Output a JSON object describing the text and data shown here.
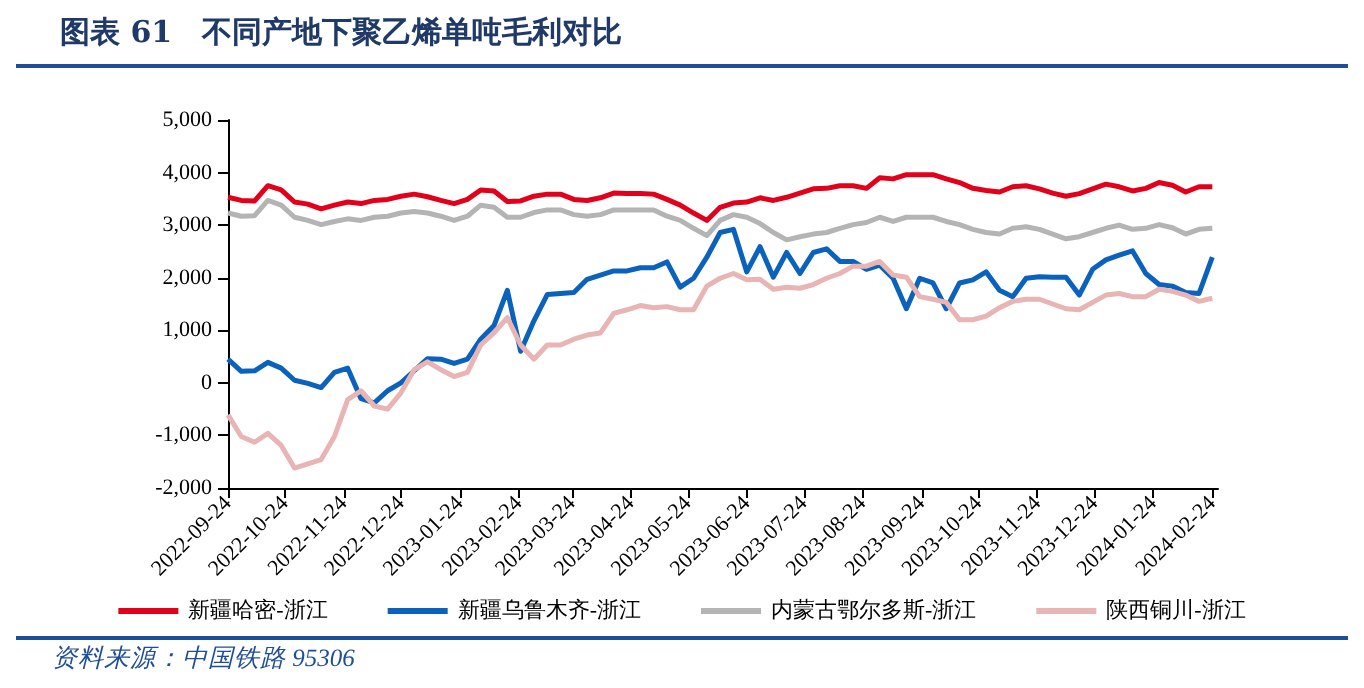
{
  "chart_data": {
    "type": "line",
    "title": "图表 61　不同产地下聚乙烯单吨毛利对比",
    "annotations": [
      "资料来源：中国铁路 95306"
    ],
    "x": [
      "2022-09-24",
      "2022-10-01",
      "2022-10-08",
      "2022-10-15",
      "2022-10-22",
      "2022-10-29",
      "2022-11-05",
      "2022-11-12",
      "2022-11-19",
      "2022-11-26",
      "2022-12-03",
      "2022-12-10",
      "2022-12-17",
      "2022-12-24",
      "2022-12-31",
      "2023-01-07",
      "2023-01-14",
      "2023-01-21",
      "2023-01-28",
      "2023-02-04",
      "2023-02-11",
      "2023-02-18",
      "2023-02-25",
      "2023-03-04",
      "2023-03-11",
      "2023-03-18",
      "2023-03-25",
      "2023-04-01",
      "2023-04-08",
      "2023-04-15",
      "2023-04-22",
      "2023-04-29",
      "2023-05-06",
      "2023-05-13",
      "2023-05-20",
      "2023-05-27",
      "2023-06-03",
      "2023-06-10",
      "2023-06-17",
      "2023-06-24",
      "2023-07-01",
      "2023-07-08",
      "2023-07-15",
      "2023-07-22",
      "2023-07-29",
      "2023-08-05",
      "2023-08-12",
      "2023-08-19",
      "2023-08-26",
      "2023-09-02",
      "2023-09-09",
      "2023-09-16",
      "2023-09-23",
      "2023-09-30",
      "2023-10-07",
      "2023-10-14",
      "2023-10-21",
      "2023-10-28",
      "2023-11-04",
      "2023-11-11",
      "2023-11-18",
      "2023-11-25",
      "2023-12-02",
      "2023-12-09",
      "2023-12-16",
      "2023-12-23",
      "2023-12-30",
      "2024-01-06",
      "2024-01-13",
      "2024-01-20",
      "2024-01-27",
      "2024-02-03",
      "2024-02-10",
      "2024-02-17",
      "2024-02-24"
    ],
    "series": [
      {
        "name": "新疆哈密-浙江",
        "color": "#e3001b",
        "values": [
          3530,
          3470,
          3460,
          3750,
          3670,
          3440,
          3400,
          3310,
          3380,
          3440,
          3410,
          3470,
          3490,
          3550,
          3590,
          3540,
          3470,
          3410,
          3490,
          3670,
          3650,
          3450,
          3460,
          3550,
          3590,
          3590,
          3490,
          3470,
          3520,
          3610,
          3600,
          3600,
          3590,
          3490,
          3380,
          3230,
          3090,
          3340,
          3420,
          3440,
          3520,
          3470,
          3530,
          3610,
          3690,
          3700,
          3750,
          3750,
          3700,
          3900,
          3880,
          3960,
          3960,
          3960,
          3880,
          3810,
          3700,
          3660,
          3630,
          3730,
          3750,
          3690,
          3610,
          3550,
          3600,
          3690,
          3780,
          3730,
          3650,
          3700,
          3810,
          3760,
          3630,
          3730,
          3730
        ]
      },
      {
        "name": "新疆乌鲁木齐-浙江",
        "color": "#0a62bd",
        "values": [
          450,
          220,
          230,
          390,
          280,
          50,
          -10,
          -90,
          200,
          280,
          -300,
          -380,
          -150,
          0,
          230,
          460,
          450,
          370,
          450,
          830,
          1090,
          1760,
          600,
          1180,
          1680,
          1700,
          1720,
          1970,
          2050,
          2130,
          2130,
          2190,
          2190,
          2300,
          1820,
          1990,
          2390,
          2860,
          2920,
          2110,
          2590,
          2010,
          2480,
          2080,
          2480,
          2550,
          2310,
          2310,
          2160,
          2240,
          1990,
          1410,
          1990,
          1900,
          1410,
          1900,
          1960,
          2110,
          1760,
          1640,
          1990,
          2020,
          2010,
          2010,
          1670,
          2160,
          2340,
          2430,
          2510,
          2080,
          1870,
          1840,
          1720,
          1700,
          2390
        ]
      },
      {
        "name": "内蒙古鄂尔多斯-浙江",
        "color": "#b4b4b4",
        "values": [
          3230,
          3170,
          3180,
          3470,
          3380,
          3150,
          3090,
          3010,
          3070,
          3120,
          3090,
          3150,
          3170,
          3230,
          3260,
          3230,
          3170,
          3090,
          3170,
          3380,
          3340,
          3150,
          3150,
          3240,
          3290,
          3290,
          3200,
          3170,
          3200,
          3290,
          3290,
          3290,
          3290,
          3170,
          3090,
          2940,
          2800,
          3090,
          3200,
          3150,
          3030,
          2860,
          2720,
          2780,
          2830,
          2860,
          2940,
          3010,
          3050,
          3150,
          3070,
          3150,
          3150,
          3150,
          3070,
          3010,
          2920,
          2860,
          2830,
          2940,
          2970,
          2920,
          2830,
          2740,
          2780,
          2860,
          2940,
          3000,
          2920,
          2940,
          3010,
          2950,
          2830,
          2920,
          2940
        ]
      },
      {
        "name": "陕西铜川-浙江",
        "color": "#e8b4b4",
        "values": [
          -610,
          -1020,
          -1130,
          -960,
          -1190,
          -1620,
          -1540,
          -1460,
          -1020,
          -320,
          -150,
          -440,
          -500,
          -190,
          250,
          400,
          250,
          120,
          200,
          720,
          950,
          1240,
          720,
          450,
          720,
          720,
          830,
          910,
          950,
          1320,
          1390,
          1470,
          1430,
          1450,
          1390,
          1390,
          1840,
          1990,
          2080,
          1960,
          1970,
          1780,
          1820,
          1800,
          1870,
          1990,
          2080,
          2220,
          2220,
          2310,
          2050,
          2010,
          1640,
          1590,
          1530,
          1200,
          1200,
          1270,
          1430,
          1550,
          1590,
          1590,
          1500,
          1410,
          1390,
          1530,
          1670,
          1700,
          1640,
          1640,
          1780,
          1740,
          1670,
          1550,
          1610
        ]
      }
    ],
    "xlim": [
      "2022-09-24",
      "2024-02-27"
    ],
    "xticks": [
      "2022-09-24",
      "2022-10-24",
      "2022-11-24",
      "2022-12-24",
      "2023-01-24",
      "2023-02-24",
      "2023-03-24",
      "2023-04-24",
      "2023-05-24",
      "2023-06-24",
      "2023-07-24",
      "2023-08-24",
      "2023-09-24",
      "2023-10-24",
      "2023-11-24",
      "2023-12-24",
      "2024-01-24",
      "2024-02-24"
    ],
    "ylim": [
      -2000,
      5000
    ],
    "yticks": [
      {
        "value": -2000,
        "label": "-2,000"
      },
      {
        "value": -1000,
        "label": "-1,000"
      },
      0,
      {
        "value": 1000,
        "label": "1,000"
      },
      {
        "value": 2000,
        "label": "2,000"
      },
      {
        "value": 3000,
        "label": "3,000"
      },
      {
        "value": 4000,
        "label": "4,000"
      },
      {
        "value": 5000,
        "label": "5,000"
      }
    ],
    "grid": false,
    "legend": "bottom",
    "marker": "none",
    "line_style": "solid"
  }
}
